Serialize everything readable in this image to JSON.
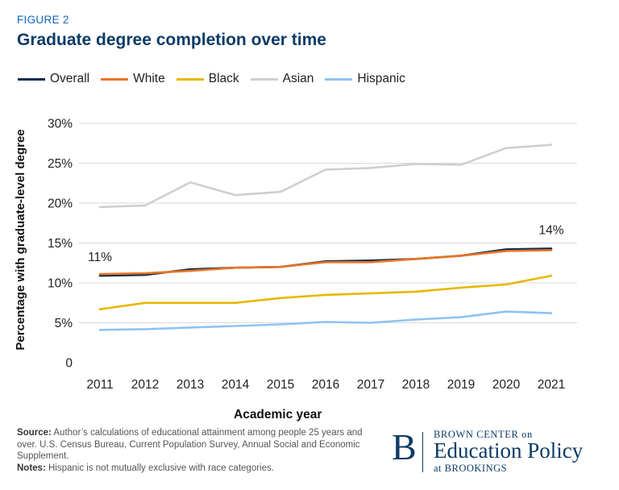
{
  "figure_label": "FIGURE 2",
  "title": "Graduate degree completion over time",
  "colors": {
    "Overall": "#0d2d4f",
    "White": "#ea7424",
    "Black": "#e6b800",
    "Asian": "#cfcfcf",
    "Hispanic": "#8ec3f2"
  },
  "chart_data": {
    "type": "line",
    "title": "Graduate degree completion over time",
    "xlabel": "Academic year",
    "ylabel": "Percentage with graduate-level degree",
    "x": [
      2011,
      2012,
      2013,
      2014,
      2015,
      2016,
      2017,
      2018,
      2019,
      2020,
      2021
    ],
    "x_tick_labels": [
      "2011",
      "2012",
      "2013",
      "2014",
      "2015",
      "2016",
      "2017",
      "2018",
      "2019",
      "2020",
      "2021"
    ],
    "ylim": [
      0,
      30
    ],
    "y_ticks": [
      0,
      5,
      10,
      15,
      20,
      25,
      30
    ],
    "y_tick_labels": [
      "0",
      "5%",
      "10%",
      "15%",
      "20%",
      "25%",
      "30%"
    ],
    "grid": true,
    "legend_position": "top-left",
    "series": [
      {
        "name": "Overall",
        "values": [
          10.9,
          11.0,
          11.7,
          11.9,
          12.0,
          12.7,
          12.8,
          13.0,
          13.4,
          14.2,
          14.3
        ]
      },
      {
        "name": "White",
        "values": [
          11.1,
          11.2,
          11.5,
          11.9,
          12.0,
          12.6,
          12.6,
          13.0,
          13.4,
          14.0,
          14.1
        ]
      },
      {
        "name": "Black",
        "values": [
          6.7,
          7.5,
          7.5,
          7.5,
          8.1,
          8.5,
          8.7,
          8.9,
          9.4,
          9.8,
          10.9
        ]
      },
      {
        "name": "Asian",
        "values": [
          19.5,
          19.7,
          22.6,
          21.0,
          21.4,
          24.2,
          24.4,
          24.9,
          24.8,
          26.9,
          27.3
        ]
      },
      {
        "name": "Hispanic",
        "values": [
          4.1,
          4.2,
          4.4,
          4.6,
          4.8,
          5.1,
          5.0,
          5.4,
          5.7,
          6.4,
          6.2
        ]
      }
    ],
    "annotations": [
      {
        "text": "11%",
        "x": 2011,
        "y": 10.9
      },
      {
        "text": "14%",
        "x": 2021,
        "y": 14.3
      }
    ]
  },
  "source": {
    "source_label": "Source:",
    "source_text": "Author’s calculations of educational attainment among people 25 years and over. U.S. Census Bureau, Current Population Survey, Annual Social and Economic Supplement.",
    "notes_label": "Notes:",
    "notes_text": "Hispanic is not mutually exclusive with race categories."
  },
  "logo": {
    "letter": "B",
    "line1": "BROWN CENTER on",
    "line2": "Education Policy",
    "line3": "at BROOKINGS"
  }
}
